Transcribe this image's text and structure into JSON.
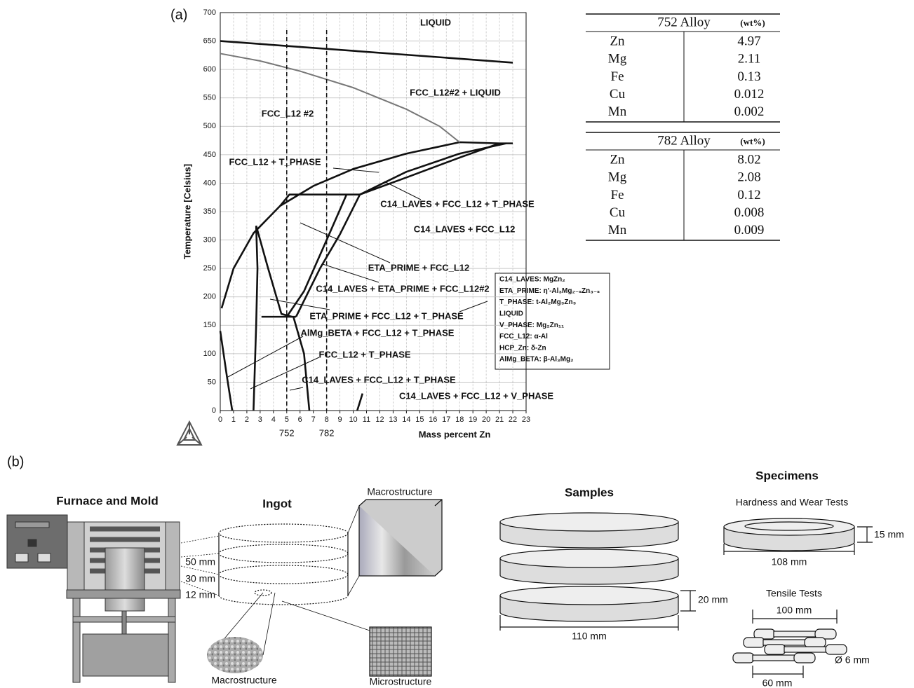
{
  "chart_data": {
    "type": "phase-diagram",
    "xlabel": "Mass percent Zn",
    "ylabel": "Temperature [Celsius]",
    "xlim": [
      0,
      23
    ],
    "ylim": [
      0,
      700
    ],
    "xticks": [
      0,
      1,
      2,
      3,
      4,
      5,
      6,
      7,
      8,
      9,
      10,
      11,
      12,
      13,
      14,
      15,
      16,
      17,
      18,
      19,
      20,
      21,
      22,
      23
    ],
    "yticks": [
      0,
      50,
      100,
      150,
      200,
      250,
      300,
      350,
      400,
      450,
      500,
      550,
      600,
      650,
      700
    ],
    "grid": true,
    "alloys": [
      {
        "x": 5,
        "label": "752"
      },
      {
        "x": 8,
        "label": "782"
      }
    ],
    "regions": [
      "LIQUID",
      "FCC_L12#2 + LIQUID",
      "FCC_L12 #2",
      "FCC_L12 + T_PHASE",
      "C14_LAVES + FCC_L12 + T_PHASE",
      "C14_LAVES + FCC_L12",
      "ETA_PRIME + FCC_L12",
      "C14_LAVES + ETA_PRIME + FCC_L12#2",
      "ETA_PRIME + FCC_L12 + T_PHASE",
      "AlMg_BETA + FCC_L12 + T_PHASE",
      "FCC_L12 + T_PHASE",
      "C14_LAVES + FCC_L12 + T_PHASE",
      "C14_LAVES + FCC_L12 + V_PHASE"
    ],
    "phase_key": [
      "C14_LAVES: MgZn₂",
      "ETA_PRIME: η'-Al₃Mg₂₋ₛZn₃₋ₛ",
      "T_PHASE: t-Al₂Mg₃Zn₃",
      "LIQUID",
      "V_PHASE: Mg₂Zn₁₁",
      "FCC_L12: α-Al",
      "HCP_Zn: δ-Zn",
      "AlMg_BETA: β-Al₃Mg₂"
    ]
  },
  "panel_a_label": "(a)",
  "tables": [
    {
      "title": "752 Alloy",
      "unit": "(wt%)",
      "rows": [
        [
          "Zn",
          "4.97"
        ],
        [
          "Mg",
          "2.11"
        ],
        [
          "Fe",
          "0.13"
        ],
        [
          "Cu",
          "0.012"
        ],
        [
          "Mn",
          "0.002"
        ]
      ]
    },
    {
      "title": "782 Alloy",
      "unit": "(wt%)",
      "rows": [
        [
          "Zn",
          "8.02"
        ],
        [
          "Mg",
          "2.08"
        ],
        [
          "Fe",
          "0.12"
        ],
        [
          "Cu",
          "0.008"
        ],
        [
          "Mn",
          "0.009"
        ]
      ]
    }
  ],
  "panel_b": {
    "label": "(b)",
    "furnace": "Furnace and Mold",
    "ingot": {
      "title": "Ingot",
      "levels": [
        "50 mm",
        "30 mm",
        "12 mm"
      ],
      "macro_top": "Macrostructure",
      "macro_bottom": "Macrostructure",
      "micro": "Microstructure"
    },
    "samples": {
      "title": "Samples",
      "thickness": "20 mm",
      "diameter": "110 mm"
    },
    "specimens": {
      "title": "Specimens",
      "hardness": "Hardness and Wear Tests",
      "ring_thickness": "15 mm",
      "ring_diameter": "108 mm",
      "tensile": "Tensile Tests",
      "length": "100 mm",
      "bar_diameter": "Ø 6 mm",
      "gauge": "60 mm"
    }
  }
}
